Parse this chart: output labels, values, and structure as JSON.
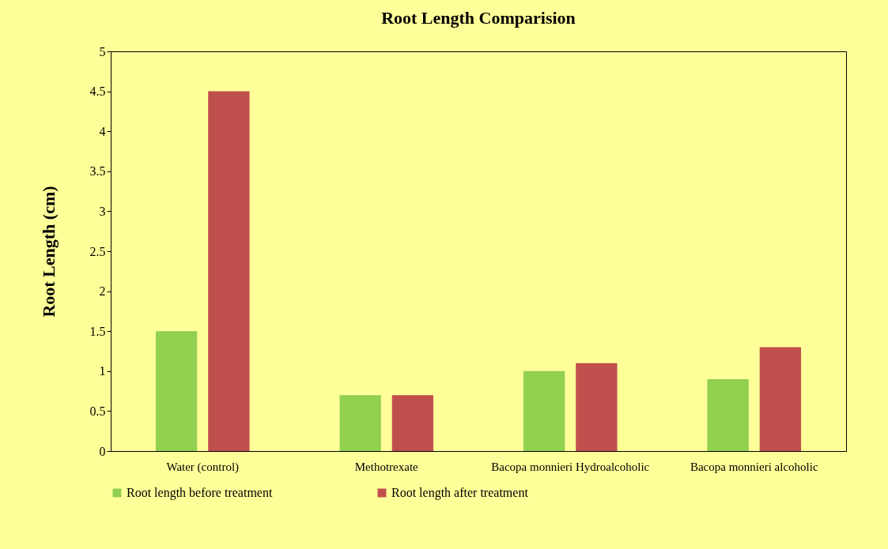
{
  "chart_data": {
    "type": "bar",
    "title": "Root Length Comparision",
    "ylabel": "Root Length (cm)",
    "categories": [
      "Water (control)",
      "Methotrexate",
      "Bacopa monnieri Hydroalcoholic",
      "Bacopa monnieri alcoholic"
    ],
    "series": [
      {
        "name": "Root length before treatment",
        "color": "#92d050",
        "values": [
          1.5,
          0.7,
          1.0,
          0.9
        ]
      },
      {
        "name": "Root length after treatment",
        "color": "#c0504d",
        "values": [
          4.5,
          0.7,
          1.1,
          1.3
        ]
      }
    ],
    "ylim": [
      0,
      5
    ],
    "yticks": [
      0,
      0.5,
      1,
      1.5,
      2,
      2.5,
      3,
      3.5,
      4,
      4.5,
      5
    ],
    "grid": false,
    "legend": "bottom"
  }
}
